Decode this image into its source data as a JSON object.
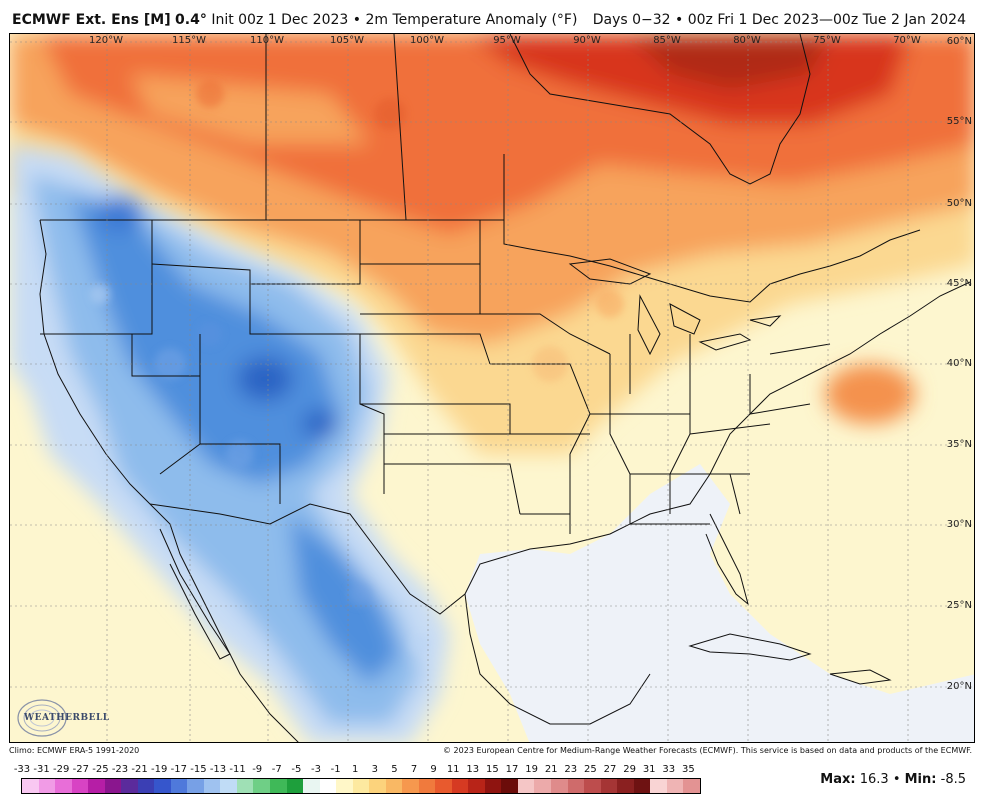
{
  "header": {
    "model": "ECMWF Ext. Ens [M]",
    "resolution": "0.4°",
    "init": "Init 00z 1 Dec 2023",
    "bullet": "•",
    "variable": "2m Temperature Anomaly (°F)",
    "valid": "Days 0−32 • 00z Fri 1 Dec 2023—00z Tue 2 Jan 2024"
  },
  "map": {
    "longitude_labels": [
      "120°W",
      "115°W",
      "110°W",
      "105°W",
      "100°W",
      "95°W",
      "90°W",
      "85°W",
      "80°W",
      "75°W",
      "70°W"
    ],
    "latitude_labels": [
      "60°N",
      "55°N",
      "50°N",
      "45°N",
      "40°N",
      "35°N",
      "30°N",
      "25°N",
      "20°N"
    ],
    "warm_region": "Canada / Northern US",
    "cold_region": "Interior West / Mexico",
    "colors": {
      "ocean_neutral": "#eef2f8",
      "land_neutral": "#fdf6cf",
      "warm_light": "#fbd891",
      "warm_mid": "#f7a35c",
      "warm_strong": "#f0703a",
      "warm_max": "#d8361e",
      "cold_light": "#c7dcf5",
      "cold_mid": "#8ebcec",
      "cold_strong": "#4f8fdd",
      "cold_max": "#2a63c4",
      "border": "#111111"
    }
  },
  "credits": {
    "climo": "Climo: ECMWF ERA-5 1991-2020",
    "copyright": "© 2023 European Centre for Medium-Range Weather Forecasts (ECMWF). This service is based on data and products of the ECMWF."
  },
  "logo": {
    "text": "WEATHERBELL"
  },
  "colorbar": {
    "ticks": [
      "-33",
      "-31",
      "-29",
      "-27",
      "-25",
      "-23",
      "-21",
      "-19",
      "-17",
      "-15",
      "-13",
      "-11",
      "-9",
      "-7",
      "-5",
      "-3",
      "-1",
      "1",
      "3",
      "5",
      "7",
      "9",
      "11",
      "13",
      "15",
      "17",
      "19",
      "21",
      "23",
      "25",
      "27",
      "29",
      "31",
      "33",
      "35"
    ],
    "swatches": [
      "#f9c8f2",
      "#f19be6",
      "#e86ed8",
      "#d843c4",
      "#b61ea6",
      "#8a168e",
      "#5b2b9c",
      "#3b3fb4",
      "#3656cc",
      "#4f79db",
      "#77a0e6",
      "#9fc2f0",
      "#c0dcf6",
      "#9fe0b5",
      "#6fcf86",
      "#3fb958",
      "#1e9f3c",
      "#e9f6f2",
      "#ffffff",
      "#fff7c8",
      "#fde9a0",
      "#fcd37c",
      "#f9b864",
      "#f6984e",
      "#f07a3d",
      "#e85a2e",
      "#d63a22",
      "#b82418",
      "#8f1410",
      "#6b0c0a",
      "#f5c6c6",
      "#ecaaaa",
      "#df8b8b",
      "#cf6b6b",
      "#bd4d4d",
      "#a53535",
      "#8a2020",
      "#6e1212",
      "#f9d4d4",
      "#efb4b4",
      "#e39393"
    ],
    "max_label": "Max",
    "max_value": "16.3",
    "min_label": "Min",
    "min_value": "-8.5"
  }
}
